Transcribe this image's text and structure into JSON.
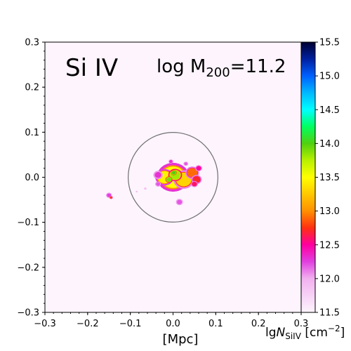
{
  "chart_data": {
    "type": "heatmap",
    "species_label": "Si IV",
    "mass_label": {
      "prefix": "log M",
      "subscript": "200",
      "suffix": "=11.2"
    },
    "xlabel": "[Mpc]",
    "colorbar_label": {
      "prefix": "lg",
      "italic": "N",
      "subscript": "SiIV",
      "units": " [cm",
      "superscript": "−2",
      "close": "]"
    },
    "xlim": [
      -0.3,
      0.3
    ],
    "ylim": [
      -0.3,
      0.3
    ],
    "xticks": [
      -0.3,
      -0.2,
      -0.1,
      0.0,
      0.1,
      0.2,
      0.3
    ],
    "xtick_labels": [
      "−0.3",
      "−0.2",
      "−0.1",
      "0.0",
      "0.1",
      "0.2",
      "0.3"
    ],
    "yticks": [
      0.3,
      0.2,
      0.1,
      0.0,
      -0.1,
      -0.2,
      -0.3
    ],
    "ytick_labels": [
      "0.3",
      "0.2",
      "0.1",
      "0.0",
      "−0.1",
      "−0.2",
      "−0.3"
    ],
    "colorbar": {
      "range": [
        11.5,
        15.5
      ],
      "ticks": [
        15.5,
        15.0,
        14.5,
        14.0,
        13.5,
        13.0,
        12.5,
        12.0,
        11.5
      ],
      "tick_labels": [
        "15.5",
        "15.0",
        "14.5",
        "14.0",
        "13.5",
        "13.0",
        "12.5",
        "12.0",
        "11.5"
      ],
      "colormap": [
        {
          "v": 11.5,
          "color": "#fdf4fd"
        },
        {
          "v": 12.0,
          "color": "#f2b0ef"
        },
        {
          "v": 12.25,
          "color": "#e040e0"
        },
        {
          "v": 12.5,
          "color": "#ff00a0"
        },
        {
          "v": 12.75,
          "color": "#ff3010"
        },
        {
          "v": 13.0,
          "color": "#ff9000"
        },
        {
          "v": 13.25,
          "color": "#ffc800"
        },
        {
          "v": 13.5,
          "color": "#ffff00"
        },
        {
          "v": 13.75,
          "color": "#b8f000"
        },
        {
          "v": 14.0,
          "color": "#50d010"
        },
        {
          "v": 14.25,
          "color": "#00ff60"
        },
        {
          "v": 14.5,
          "color": "#00ffff"
        },
        {
          "v": 14.75,
          "color": "#00b8ff"
        },
        {
          "v": 15.0,
          "color": "#0060ff"
        },
        {
          "v": 15.25,
          "color": "#0020a0"
        },
        {
          "v": 15.5,
          "color": "#000030"
        }
      ]
    },
    "background_value": 11.5,
    "virial_circle": {
      "center": [
        0.0,
        0.0
      ],
      "radius": 0.105
    },
    "blobs": [
      {
        "cx": 0.0,
        "cy": 0.0,
        "r": 0.028,
        "v": 13.5
      },
      {
        "cx": -0.02,
        "cy": 0.0,
        "r": 0.016,
        "v": 13.45
      },
      {
        "cx": 0.025,
        "cy": -0.005,
        "r": 0.018,
        "v": 13.3
      },
      {
        "cx": 0.005,
        "cy": 0.005,
        "r": 0.012,
        "v": 13.8
      },
      {
        "cx": 0.002,
        "cy": 0.01,
        "r": 0.005,
        "v": 14.0
      },
      {
        "cx": -0.01,
        "cy": -0.005,
        "r": 0.006,
        "v": 13.9
      },
      {
        "cx": 0.045,
        "cy": 0.01,
        "r": 0.012,
        "v": 12.9
      },
      {
        "cx": 0.055,
        "cy": -0.005,
        "r": 0.009,
        "v": 12.7
      },
      {
        "cx": 0.06,
        "cy": 0.02,
        "r": 0.006,
        "v": 12.5
      },
      {
        "cx": 0.05,
        "cy": -0.015,
        "r": 0.006,
        "v": 12.6
      },
      {
        "cx": -0.035,
        "cy": 0.005,
        "r": 0.008,
        "v": 12.3
      },
      {
        "cx": -0.035,
        "cy": -0.015,
        "r": 0.005,
        "v": 12.2
      },
      {
        "cx": 0.015,
        "cy": -0.055,
        "r": 0.006,
        "v": 12.2
      },
      {
        "cx": -0.005,
        "cy": 0.035,
        "r": 0.004,
        "v": 12.3
      },
      {
        "cx": 0.03,
        "cy": 0.03,
        "r": 0.004,
        "v": 12.2
      },
      {
        "cx": -0.15,
        "cy": -0.04,
        "r": 0.005,
        "v": 12.25
      },
      {
        "cx": -0.145,
        "cy": -0.045,
        "r": 0.003,
        "v": 12.8
      },
      {
        "cx": -0.065,
        "cy": -0.025,
        "r": 0.002,
        "v": 11.9
      },
      {
        "cx": -0.085,
        "cy": -0.032,
        "r": 0.0015,
        "v": 11.9
      }
    ]
  }
}
